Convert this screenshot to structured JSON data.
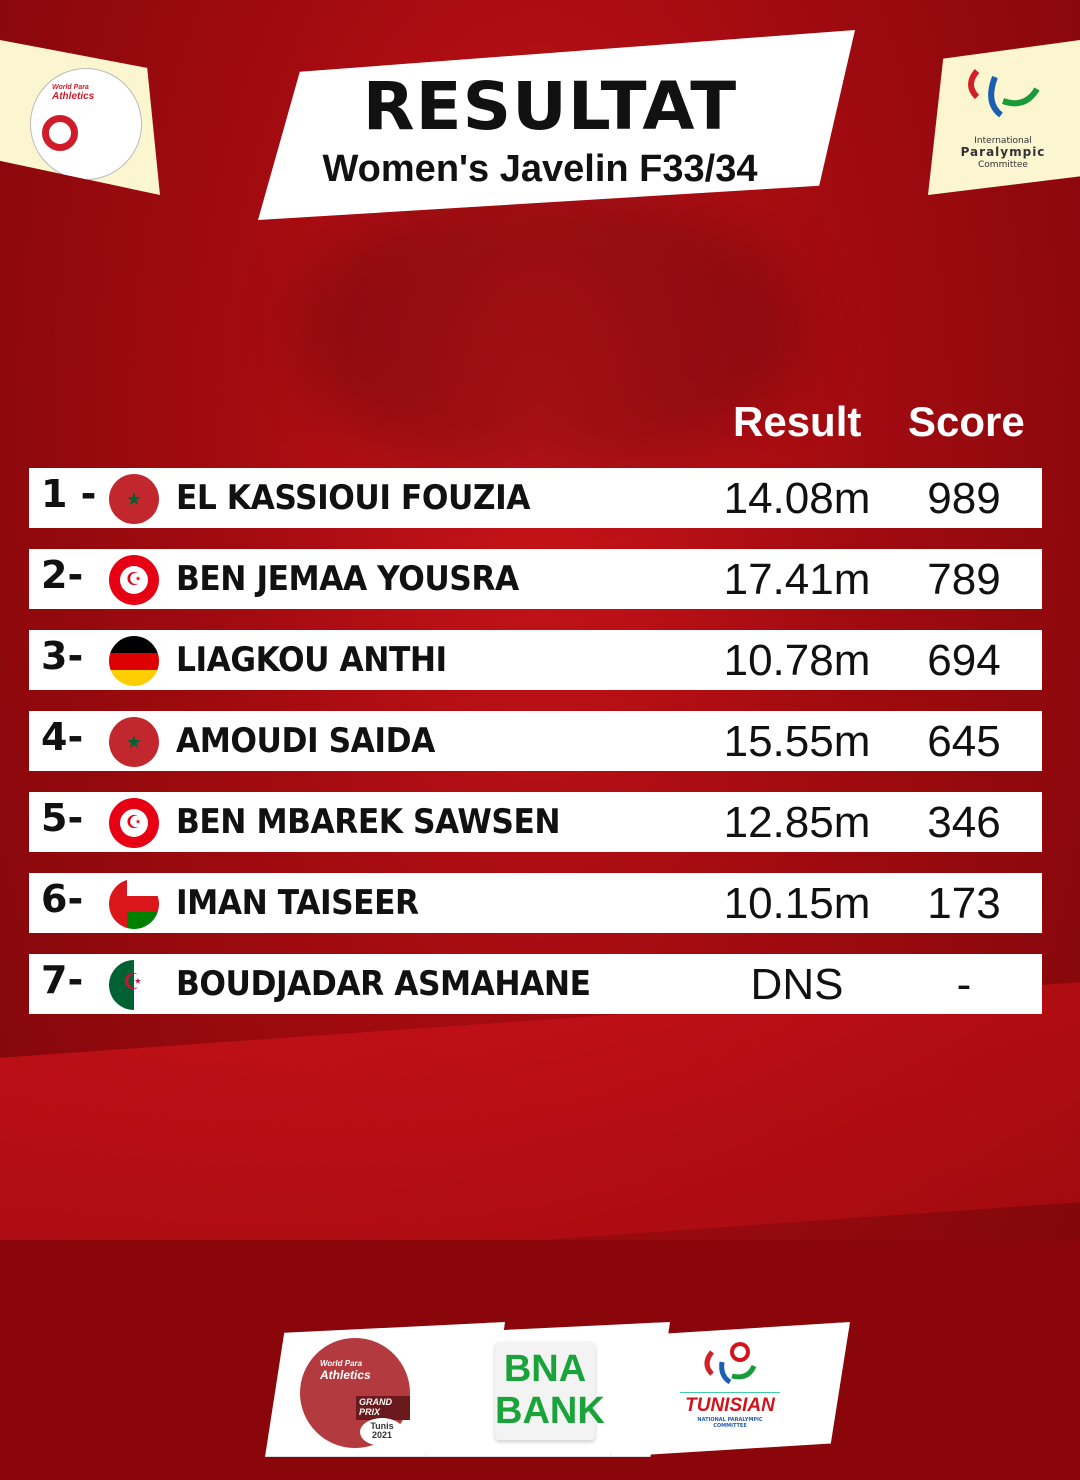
{
  "header": {
    "title": "RESULTAT",
    "subtitle": "Women's Javelin F33/34"
  },
  "logos": {
    "left": {
      "line1": "World Para",
      "line2": "Athletics"
    },
    "right": {
      "line1": "International",
      "line2": "Paralympic",
      "line3": "Committee"
    }
  },
  "columns": {
    "result": "Result",
    "score": "Score"
  },
  "rows": [
    {
      "rank": "1 -",
      "flag": "morocco",
      "name": "EL KASSIOUI FOUZIA",
      "result": "14.08m",
      "score": "989"
    },
    {
      "rank": "2-",
      "flag": "tunisia",
      "name": "BEN JEMAA YOUSRA",
      "result": "17.41m",
      "score": "789"
    },
    {
      "rank": "3-",
      "flag": "germany",
      "name": "LIAGKOU ANTHI",
      "result": "10.78m",
      "score": "694"
    },
    {
      "rank": "4-",
      "flag": "morocco",
      "name": "AMOUDI SAIDA",
      "result": "15.55m",
      "score": "645"
    },
    {
      "rank": "5-",
      "flag": "tunisia",
      "name": "BEN MBAREK SAWSEN",
      "result": "12.85m",
      "score": "346"
    },
    {
      "rank": "6-",
      "flag": "oman",
      "name": "IMAN TAISEER",
      "result": "10.15m",
      "score": "173"
    },
    {
      "rank": "7-",
      "flag": "algeria",
      "name": "BOUDJADAR ASMAHANE",
      "result": "DNS",
      "score": "-"
    }
  ],
  "sponsors": {
    "wpa": {
      "line1": "World Para",
      "line2": "Athletics",
      "line3": "GRAND PRIX",
      "line4": "Tunis",
      "line5": "2021"
    },
    "bna": {
      "line1": "BNA",
      "line2": "BANK"
    },
    "tnpc": {
      "line1": "TUNISIAN",
      "line2": "NATIONAL PARALYMPIC COMMITTEE"
    }
  },
  "colors": {
    "background": "#b00c12",
    "brand_green": "#1aa33a",
    "cream": "#fbf5d0"
  }
}
